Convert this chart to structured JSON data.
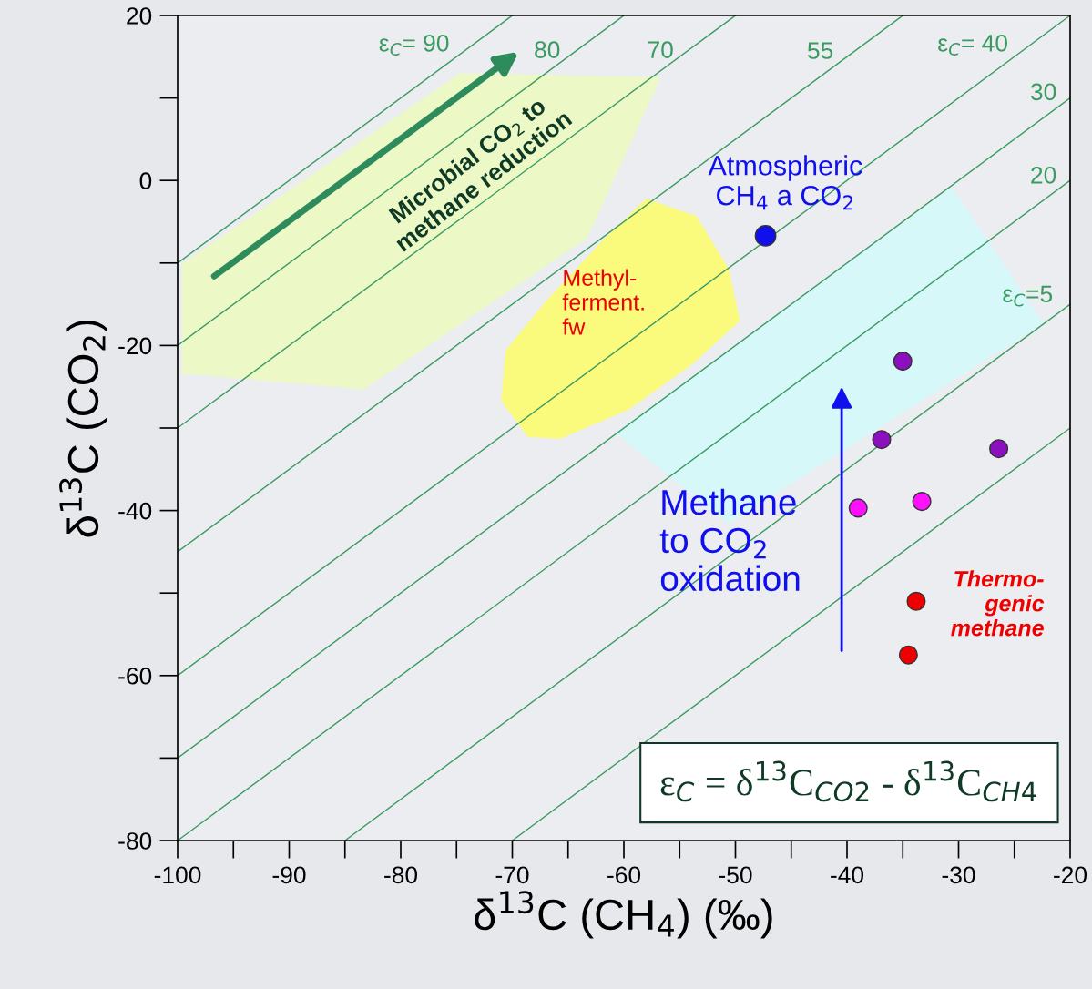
{
  "chart_data": {
    "type": "scatter",
    "xlabel": "δ$^{13}$C (CH$_{4}$) (‰)",
    "ylabel": "δ$^{13}$C (CO$_{2}$)",
    "xlim": [
      -100,
      -20
    ],
    "xticks": [
      -100,
      -90,
      -80,
      -70,
      -60,
      -50,
      -40,
      -30,
      -20
    ],
    "ylim": [
      -80,
      20
    ],
    "yticks": [
      -80,
      -60,
      -40,
      -20,
      0,
      20
    ],
    "grid": false,
    "legend": false,
    "series": [
      {
        "type": "area",
        "color": "#ecf8c6",
        "x": [
          -74.7,
          -56.7,
          -63.3,
          -83.3,
          -99.6,
          -99.6
        ],
        "values": [
          13.0,
          12.5,
          -7.0,
          -25.3,
          -23.4,
          -10.1
        ]
      },
      {
        "type": "area",
        "color": "#d6f8f8",
        "x": [
          -60.8,
          -30.6,
          -22.4,
          -50.6
        ],
        "values": [
          -30.6,
          -0.8,
          -17.3,
          -41.6
        ]
      },
      {
        "type": "area",
        "color": "#fafa7c",
        "x": [
          -58.0,
          -53.5,
          -50.6,
          -49.6,
          -53.9,
          -59.6,
          -65.7,
          -68.6,
          -71.0,
          -70.6,
          -66.9,
          -62.0
        ],
        "values": [
          -2.2,
          -4.3,
          -10.7,
          -17.0,
          -22.3,
          -27.8,
          -31.3,
          -31.1,
          -26.7,
          -20.6,
          -14.5,
          -7.4
        ]
      },
      {
        "type": "line",
        "color": "#3a9a62",
        "x": [
          -100,
          -70
        ],
        "values": [
          -10,
          20
        ]
      },
      {
        "type": "line",
        "color": "#3a9a62",
        "x": [
          -100,
          -60
        ],
        "values": [
          -20,
          20
        ]
      },
      {
        "type": "line",
        "color": "#3a9a62",
        "x": [
          -100,
          -50
        ],
        "values": [
          -30,
          20
        ]
      },
      {
        "type": "line",
        "color": "#3a9a62",
        "x": [
          -100,
          -35
        ],
        "values": [
          -45,
          20
        ]
      },
      {
        "type": "line",
        "color": "#3a9a62",
        "x": [
          -100,
          -20
        ],
        "values": [
          -60,
          20
        ]
      },
      {
        "type": "line",
        "color": "#3a9a62",
        "x": [
          -100,
          -20
        ],
        "values": [
          -70,
          10
        ]
      },
      {
        "type": "line",
        "color": "#3a9a62",
        "x": [
          -100,
          -20
        ],
        "values": [
          -80,
          0
        ]
      },
      {
        "type": "line",
        "color": "#3a9a62",
        "x": [
          -85,
          -20
        ],
        "values": [
          -80,
          -15
        ]
      },
      {
        "type": "line",
        "color": "#3a9a62",
        "x": [
          -70,
          -20
        ],
        "values": [
          -80,
          -30
        ]
      },
      {
        "marker": "circle",
        "color": "#1010ee",
        "x": [
          -47.3
        ],
        "values": [
          -6.7
        ]
      },
      {
        "marker": "circle",
        "color": "#8a10c0",
        "x": [
          -35.0,
          -36.9,
          -26.4
        ],
        "values": [
          -21.9,
          -31.4,
          -32.5
        ]
      },
      {
        "marker": "circle",
        "color": "#ff10ff",
        "x": [
          -39.0,
          -33.3
        ],
        "values": [
          -39.7,
          -38.9
        ]
      },
      {
        "marker": "circle",
        "color": "#ee0000",
        "x": [
          -33.8,
          -34.5
        ],
        "values": [
          -51.0,
          -57.5
        ]
      }
    ],
    "annotations": [
      "ε$_{C}$= 90",
      "80",
      "70",
      "55",
      "ε$_{C}$= 40",
      "30",
      "20",
      "ε$_{C}$=5",
      "Microbial CO$_{2}$ to\nmethane reduction",
      "Atmospheric\nCH$_{4}$ a CO$_{2}$",
      "Methyl-\nferment.\nfw",
      "Methane\nto CO$_{2}$\noxidation",
      "Thermo-\ngenic\nmethane",
      "ε$_{C}$ = δ$^{13}$C$_{CO2}$ - δ$^{13}$C$_{CH4}$"
    ]
  }
}
